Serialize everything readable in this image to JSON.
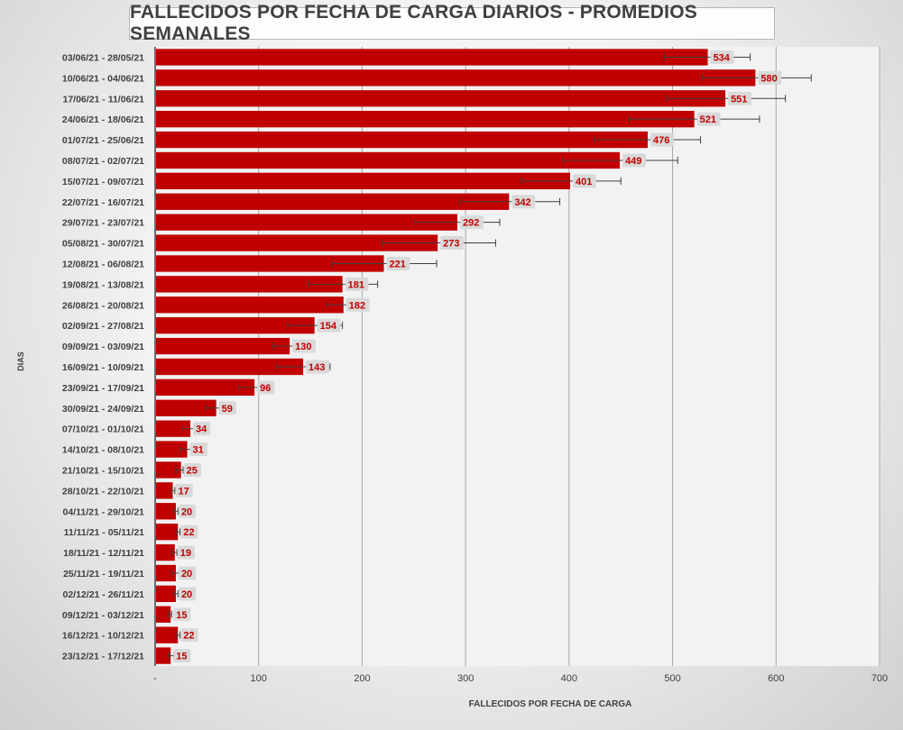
{
  "chart_data": {
    "type": "bar",
    "orientation": "horizontal",
    "title": "FALLECIDOS POR FECHA DE CARGA DIARIOS - PROMEDIOS SEMANALES",
    "xlabel": "FALLECIDOS POR FECHA DE CARGA",
    "ylabel": "DIAS",
    "xlim": [
      0,
      700
    ],
    "x_ticks": [
      "-",
      "100",
      "200",
      "300",
      "400",
      "500",
      "600",
      "700"
    ],
    "grid": true,
    "bar_color": "#c00000",
    "label_color": "#c00000",
    "categories": [
      "03/06/21 - 28/05/21",
      "10/06/21 - 04/06/21",
      "17/06/21 - 11/06/21",
      "24/06/21 - 18/06/21",
      "01/07/21 - 25/06/21",
      "08/07/21 - 02/07/21",
      "15/07/21 - 09/07/21",
      "22/07/21 - 16/07/21",
      "29/07/21 - 23/07/21",
      "05/08/21 - 30/07/21",
      "12/08/21 - 06/08/21",
      "19/08/21 - 13/08/21",
      "26/08/21 - 20/08/21",
      "02/09/21 - 27/08/21",
      "09/09/21 - 03/09/21",
      "16/09/21 - 10/09/21",
      "23/09/21 - 17/09/21",
      "30/09/21 - 24/09/21",
      "07/10/21 - 01/10/21",
      "14/10/21 - 08/10/21",
      "21/10/21 - 15/10/21",
      "28/10/21 - 22/10/21",
      "04/11/21 - 29/10/21",
      "11/11/21 - 05/11/21",
      "18/11/21 - 12/11/21",
      "25/11/21 - 19/11/21",
      "02/12/21 - 26/11/21",
      "09/12/21 - 03/12/21",
      "16/12/21 - 10/12/21",
      "23/12/21 - 17/12/21"
    ],
    "values": [
      534,
      580,
      551,
      521,
      476,
      449,
      401,
      342,
      292,
      273,
      221,
      181,
      182,
      154,
      130,
      143,
      96,
      59,
      34,
      31,
      25,
      17,
      20,
      22,
      19,
      20,
      20,
      15,
      22,
      15
    ],
    "error_low": [
      492,
      528,
      494,
      458,
      424,
      394,
      354,
      294,
      251,
      219,
      171,
      148,
      166,
      128,
      114,
      117,
      81,
      49,
      27,
      24,
      20,
      16,
      18,
      21,
      16,
      16,
      18,
      13,
      21,
      13
    ],
    "error_high": [
      575,
      634,
      609,
      584,
      527,
      505,
      450,
      391,
      333,
      329,
      272,
      215,
      187,
      181,
      151,
      169,
      110,
      68,
      40,
      37,
      27,
      19,
      22,
      24,
      21,
      23,
      22,
      16,
      24,
      18
    ]
  }
}
